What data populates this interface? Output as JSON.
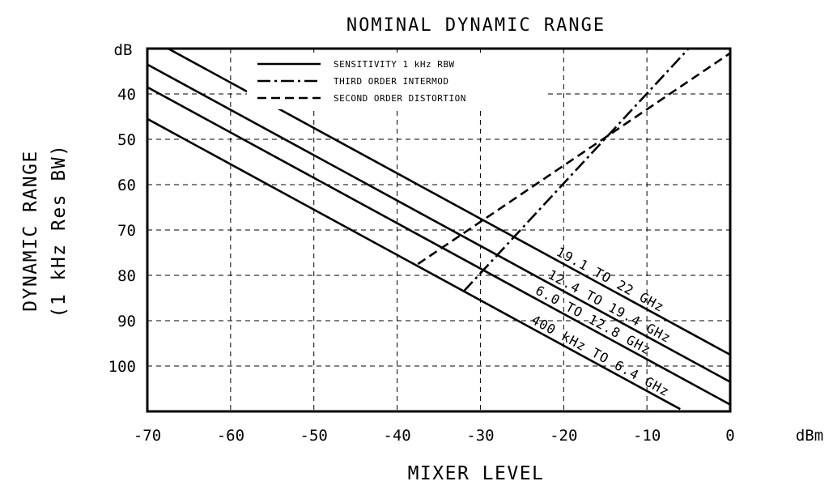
{
  "chart_data": {
    "type": "line",
    "title": "NOMINAL DYNAMIC RANGE",
    "xlabel": "MIXER LEVEL",
    "x_unit": "dBm",
    "ylabel_lines": [
      "DYNAMIC RANGE",
      "(1 kHz Res BW)"
    ],
    "y_unit": "dB",
    "xlim": [
      -70,
      0
    ],
    "ylim": [
      110,
      30
    ],
    "y_reversed": true,
    "x_ticks": [
      "-70",
      "-60",
      "-50",
      "-40",
      "-30",
      "-20",
      "-10",
      "0"
    ],
    "y_ticks": [
      "40",
      "50",
      "60",
      "70",
      "80",
      "90",
      "100"
    ],
    "grid": "dashed",
    "legend_position": "top-center",
    "legend": [
      {
        "label": "SENSITIVITY 1 kHz RBW",
        "style": "solid"
      },
      {
        "label": "THIRD ORDER INTERMOD",
        "style": "dash-dot"
      },
      {
        "label": "SECOND ORDER DISTORTION",
        "style": "dashed"
      }
    ],
    "series": [
      {
        "name": "19.1 TO 22 GHz",
        "style": "solid",
        "x": [
          -67.5,
          0
        ],
        "y": [
          30,
          97.5
        ]
      },
      {
        "name": "12.4 TO 19.4 GHz",
        "style": "solid",
        "x": [
          -70,
          0
        ],
        "y": [
          33.5,
          103.5
        ]
      },
      {
        "name": "6.0 TO 12.8 GHz",
        "style": "solid",
        "x": [
          -70,
          0
        ],
        "y": [
          38.5,
          108.5
        ]
      },
      {
        "name": "400 kHz TO 6.4 GHz",
        "style": "solid",
        "x": [
          -70,
          -6
        ],
        "y": [
          45.5,
          109.5
        ]
      },
      {
        "style": "dash-dot",
        "x": [
          -32,
          -5
        ],
        "y": [
          83.5,
          30
        ]
      },
      {
        "style": "dashed",
        "x": [
          -37.5,
          0
        ],
        "y": [
          77.5,
          31
        ]
      }
    ],
    "curve_labels": [
      "19.1 TO 22 GHz",
      "12.4 TO 19.4 GHz",
      "6.0 TO 12.8 GHz",
      "400 kHz TO 6.4 GHz"
    ]
  }
}
